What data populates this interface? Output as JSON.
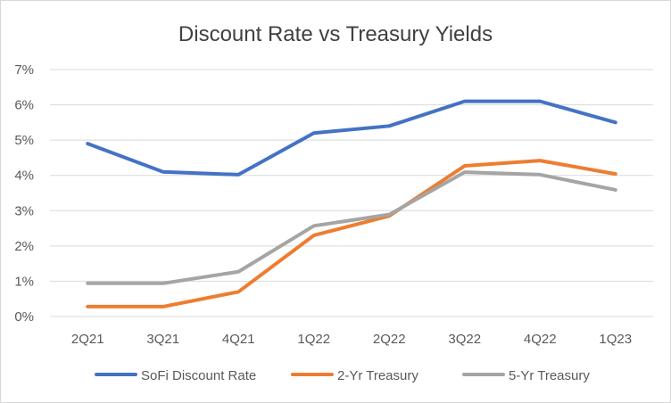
{
  "chart_data": {
    "type": "line",
    "title": "Discount Rate vs Treasury Yields",
    "categories": [
      "2Q21",
      "3Q21",
      "4Q21",
      "1Q22",
      "2Q22",
      "3Q22",
      "4Q22",
      "1Q23"
    ],
    "y_ticks": [
      "0%",
      "1%",
      "2%",
      "3%",
      "4%",
      "5%",
      "6%",
      "7%"
    ],
    "ylim": [
      0,
      7
    ],
    "grid": true,
    "legend_position": "bottom",
    "series": [
      {
        "name": "SoFi Discount Rate",
        "color": "#4472c4",
        "values": [
          4.9,
          4.1,
          4.02,
          5.2,
          5.4,
          6.1,
          6.1,
          5.5
        ]
      },
      {
        "name": "2-Yr Treasury",
        "color": "#ed7d31",
        "values": [
          0.28,
          0.28,
          0.7,
          2.3,
          2.85,
          4.27,
          4.42,
          4.04
        ]
      },
      {
        "name": "5-Yr Treasury",
        "color": "#a5a5a5",
        "values": [
          0.94,
          0.94,
          1.27,
          2.57,
          2.89,
          4.09,
          4.02,
          3.59
        ]
      }
    ]
  }
}
